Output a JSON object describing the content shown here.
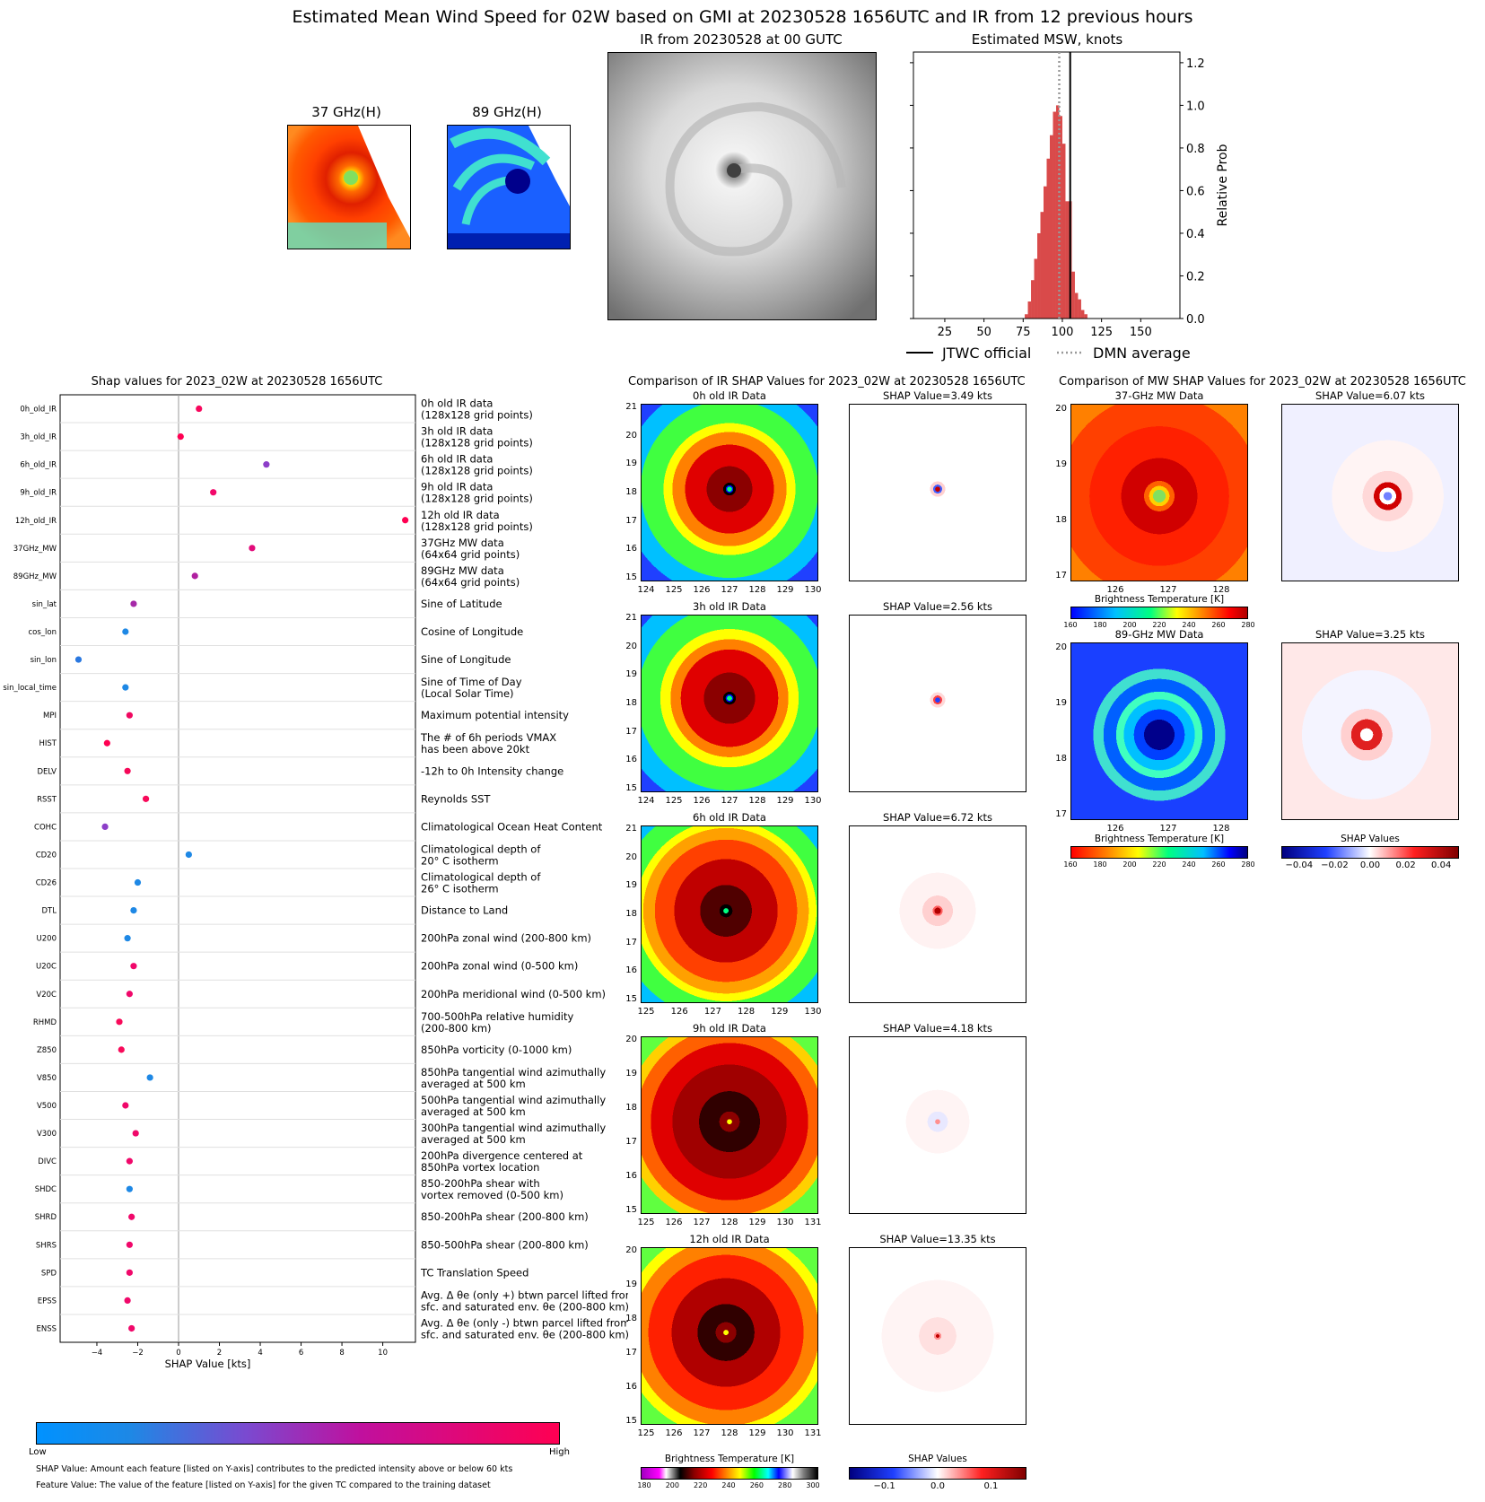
{
  "title": "Estimated Mean Wind Speed for 02W based on GMI at 20230528 1656UTC and IR from 12 previous hours",
  "thumbs": {
    "mw37_title": "37 GHz(H)",
    "mw89_title": "89 GHz(H)",
    "ir_title": "IR from 20230528 at 00 GUTC"
  },
  "msw": {
    "title": "Estimated MSW, knots",
    "ylabel": "Relative Prob",
    "legend_official": "JTWC official",
    "legend_dmn": "DMN average"
  },
  "shap_panel": {
    "title": "Shap values for 2023_02W at 20230528 1656UTC",
    "xlabel": "SHAP Value [kts]",
    "cbar_low": "Low",
    "cbar_high": "High",
    "note1": "SHAP Value: Amount each feature [listed on Y-axis] contributes to the predicted intensity above or below 60 kts",
    "note2": "Feature Value: The value of the feature [listed on Y-axis] for the given TC compared to the training dataset"
  },
  "ir_compare": {
    "title": "Comparison of IR SHAP Values for 2023_02W at 20230528 1656UTC",
    "rows": [
      {
        "data_title": "0h old IR Data",
        "shap_title": "SHAP Value=3.49 kts"
      },
      {
        "data_title": "3h old IR Data",
        "shap_title": "SHAP Value=2.56 kts"
      },
      {
        "data_title": "6h old IR Data",
        "shap_title": "SHAP Value=6.72 kts"
      },
      {
        "data_title": "9h old IR Data",
        "shap_title": "SHAP Value=4.18 kts"
      },
      {
        "data_title": "12h old IR Data",
        "shap_title": "SHAP Value=13.35 kts"
      }
    ],
    "cbar_bt_label": "Brightness Temperature [K]",
    "cbar_bt_ticks": [
      "180",
      "200",
      "220",
      "240",
      "260",
      "280",
      "300"
    ],
    "cbar_shap_label": "SHAP Values",
    "cbar_shap_ticks": [
      "−0.1",
      "0.0",
      "0.1"
    ]
  },
  "mw_compare": {
    "title": "Comparison of MW SHAP Values for 2023_02W at 20230528 1656UTC",
    "rows": [
      {
        "data_title": "37-GHz MW Data",
        "shap_title": "SHAP Value=6.07 kts"
      },
      {
        "data_title": "89-GHz MW Data",
        "shap_title": "SHAP Value=3.25 kts"
      }
    ],
    "cbar_bt_label": "Brightness Temperature [K]",
    "cbar_bt_ticks": [
      "160",
      "180",
      "200",
      "220",
      "240",
      "260",
      "280"
    ],
    "cbar_shap_label": "SHAP Values",
    "cbar_shap_ticks": [
      "−0.04",
      "−0.02",
      "0.00",
      "0.02",
      "0.04"
    ]
  },
  "chart_data": [
    {
      "type": "bar",
      "title": "Estimated MSW, knots",
      "ylabel": "Relative Prob",
      "xlim": [
        5,
        175
      ],
      "ylim": [
        0,
        1.25
      ],
      "xticks": [
        25,
        50,
        75,
        100,
        125,
        150
      ],
      "yticks": [
        0.0,
        0.2,
        0.4,
        0.6,
        0.8,
        1.0,
        1.2
      ],
      "bin_centers": [
        77,
        79,
        81,
        83,
        85,
        87,
        89,
        91,
        93,
        95,
        97,
        99,
        101,
        103,
        105,
        107,
        109,
        111,
        113,
        115
      ],
      "values": [
        0.02,
        0.08,
        0.18,
        0.28,
        0.4,
        0.5,
        0.62,
        0.75,
        0.86,
        0.97,
        1.0,
        0.95,
        0.82,
        0.55,
        0.55,
        0.22,
        0.12,
        0.09,
        0.04,
        0.02
      ],
      "jtwc_official": 105,
      "dmn_average": 98,
      "legend": [
        "JTWC official",
        "DMN average"
      ]
    },
    {
      "type": "scatter",
      "title": "Shap values for 2023_02W at 20230528 1656UTC",
      "xlabel": "SHAP Value [kts]",
      "xlim": [
        -5.8,
        11.6
      ],
      "xticks": [
        -4,
        -2,
        0,
        2,
        4,
        6,
        8,
        10
      ],
      "features": [
        {
          "name": "0h_old_IR",
          "desc": "0h old IR data\n(128x128 grid points)",
          "shap": 1.0,
          "color": "#f8075d"
        },
        {
          "name": "3h_old_IR",
          "desc": "3h old IR data\n(128x128 grid points)",
          "shap": 0.1,
          "color": "#ff0052"
        },
        {
          "name": "6h_old_IR",
          "desc": "6h old IR data\n(128x128 grid points)",
          "shap": 4.3,
          "color": "#8c3ec8"
        },
        {
          "name": "9h_old_IR",
          "desc": "9h old IR data\n(128x128 grid points)",
          "shap": 1.7,
          "color": "#f2086a"
        },
        {
          "name": "12h_old_IR",
          "desc": "12h old IR data\n(128x128 grid points)",
          "shap": 11.1,
          "color": "#ff0052"
        },
        {
          "name": "37GHz_MW",
          "desc": "37GHz MW data\n(64x64 grid points)",
          "shap": 3.6,
          "color": "#e20b7a"
        },
        {
          "name": "89GHz_MW",
          "desc": "89GHz MW data\n(64x64 grid points)",
          "shap": 0.8,
          "color": "#b020a0"
        },
        {
          "name": "sin_lat",
          "desc": "Sine of Latitude",
          "shap": -2.2,
          "color": "#a62aa8"
        },
        {
          "name": "cos_lon",
          "desc": "Cosine of Longitude",
          "shap": -2.6,
          "color": "#1e88e5"
        },
        {
          "name": "sin_lon",
          "desc": "Sine of Longitude",
          "shap": -4.9,
          "color": "#2a78e0"
        },
        {
          "name": "sin_local_time",
          "desc": "Sine of Time of Day\n(Local Solar Time)",
          "shap": -2.6,
          "color": "#1e88e5"
        },
        {
          "name": "MPI",
          "desc": "Maximum potential intensity",
          "shap": -2.4,
          "color": "#f00860"
        },
        {
          "name": "HIST",
          "desc": "The # of 6h periods VMAX\nhas been above 20kt",
          "shap": -3.5,
          "color": "#ff0052"
        },
        {
          "name": "DELV",
          "desc": "-12h to 0h Intensity change",
          "shap": -2.5,
          "color": "#f50858"
        },
        {
          "name": "RSST",
          "desc": "Reynolds SST",
          "shap": -1.6,
          "color": "#f80a5a"
        },
        {
          "name": "COHC",
          "desc": "Climatological Ocean Heat Content",
          "shap": -3.6,
          "color": "#8c3ec8"
        },
        {
          "name": "CD20",
          "desc": "Climatological depth of\n20° C isotherm",
          "shap": 0.5,
          "color": "#1e88e5"
        },
        {
          "name": "CD26",
          "desc": "Climatological depth of\n26° C isotherm",
          "shap": -2.0,
          "color": "#1e88e5"
        },
        {
          "name": "DTL",
          "desc": "Distance to Land",
          "shap": -2.2,
          "color": "#1e88e5"
        },
        {
          "name": "U200",
          "desc": "200hPa zonal wind (200-800 km)",
          "shap": -2.5,
          "color": "#1e88e5"
        },
        {
          "name": "U20C",
          "desc": "200hPa zonal wind (0-500 km)",
          "shap": -2.2,
          "color": "#f0086a"
        },
        {
          "name": "V20C",
          "desc": "200hPa meridional wind (0-500 km)",
          "shap": -2.4,
          "color": "#f0086a"
        },
        {
          "name": "RHMD",
          "desc": "700-500hPa relative humidity\n(200-800 km)",
          "shap": -2.9,
          "color": "#f80a5a"
        },
        {
          "name": "Z850",
          "desc": "850hPa vorticity (0-1000 km)",
          "shap": -2.8,
          "color": "#f80a5a"
        },
        {
          "name": "V850",
          "desc": "850hPa tangential wind azimuthally\naveraged at 500 km",
          "shap": -1.4,
          "color": "#1e88e5"
        },
        {
          "name": "V500",
          "desc": "500hPa tangential wind azimuthally\naveraged at 500 km",
          "shap": -2.6,
          "color": "#f0086a"
        },
        {
          "name": "V300",
          "desc": "300hPa tangential wind azimuthally\naveraged at 500 km",
          "shap": -2.1,
          "color": "#f0086a"
        },
        {
          "name": "DIVC",
          "desc": "200hPa divergence centered at\n850hPa vortex location",
          "shap": -2.4,
          "color": "#f0086a"
        },
        {
          "name": "SHDC",
          "desc": "850-200hPa shear with\nvortex removed (0-500 km)",
          "shap": -2.4,
          "color": "#1e88e5"
        },
        {
          "name": "SHRD",
          "desc": "850-200hPa shear (200-800 km)",
          "shap": -2.3,
          "color": "#f0086a"
        },
        {
          "name": "SHRS",
          "desc": "850-500hPa shear (200-800 km)",
          "shap": -2.4,
          "color": "#f0086a"
        },
        {
          "name": "SPD",
          "desc": "TC Translation Speed",
          "shap": -2.4,
          "color": "#f0086a"
        },
        {
          "name": "EPSS",
          "desc": "Avg. Δ θe (only +) btwn parcel lifted from\nsfc. and saturated env. θe (200-800 km)",
          "shap": -2.5,
          "color": "#f0086a"
        },
        {
          "name": "ENSS",
          "desc": "Avg. Δ θe (only -) btwn parcel lifted from\nsfc. and saturated env. θe (200-800 km)",
          "shap": -2.3,
          "color": "#f0086a"
        }
      ]
    }
  ],
  "ir_axes": {
    "yticks_rows": [
      [
        "21",
        "20",
        "19",
        "18",
        "17",
        "16",
        "15"
      ],
      [
        "21",
        "20",
        "19",
        "18",
        "17",
        "16",
        "15"
      ],
      [
        "21",
        "20",
        "19",
        "18",
        "17",
        "16",
        "15"
      ],
      [
        "20",
        "19",
        "18",
        "17",
        "16",
        "15"
      ],
      [
        "20",
        "19",
        "18",
        "17",
        "16",
        "15"
      ]
    ],
    "xticks_rows": [
      [
        "124",
        "125",
        "126",
        "127",
        "128",
        "129",
        "130"
      ],
      [
        "124",
        "125",
        "126",
        "127",
        "128",
        "129",
        "130"
      ],
      [
        "125",
        "126",
        "127",
        "128",
        "129",
        "130"
      ],
      [
        "125",
        "126",
        "127",
        "128",
        "129",
        "130",
        "131"
      ],
      [
        "125",
        "126",
        "127",
        "128",
        "129",
        "130",
        "131"
      ]
    ]
  },
  "mw_axes": {
    "yticks": [
      "20",
      "19",
      "18",
      "17"
    ],
    "xticks": [
      "126",
      "127",
      "128"
    ]
  }
}
